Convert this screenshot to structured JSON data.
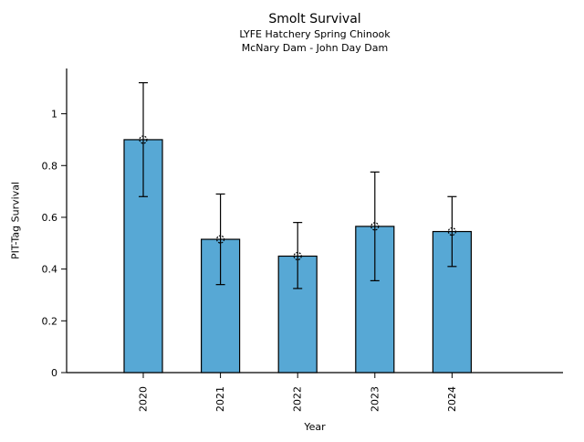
{
  "header": {
    "title": "Smolt Survival",
    "subtitle1": "LYFE Hatchery Spring Chinook",
    "subtitle2": "McNary Dam - John Day Dam"
  },
  "chart_data": {
    "type": "bar",
    "title": "Smolt Survival",
    "subtitle": [
      "LYFE Hatchery Spring Chinook",
      "McNary Dam - John Day Dam"
    ],
    "categories": [
      "2020",
      "2021",
      "2022",
      "2023",
      "2024"
    ],
    "values": [
      0.9,
      0.515,
      0.45,
      0.565,
      0.545
    ],
    "error_low": [
      0.68,
      0.34,
      0.325,
      0.355,
      0.41
    ],
    "error_high": [
      1.12,
      0.69,
      0.58,
      0.775,
      0.68
    ],
    "xlabel": "Year",
    "ylabel": "PIT-Tag Survival",
    "ytick_values": [
      0,
      0.2,
      0.4,
      0.6,
      0.8,
      1
    ],
    "ytick_labels": [
      "0",
      "0.2",
      "0.4",
      "0.6",
      "0.8",
      "1"
    ],
    "ylim": [
      0,
      1.175
    ],
    "xtick_rotation": -90,
    "grid": false,
    "legend": false,
    "marker": "open-circle",
    "bar_color": "#57a8d5",
    "bar_edge_color": "#000000",
    "errorbar_color": "#000000"
  }
}
